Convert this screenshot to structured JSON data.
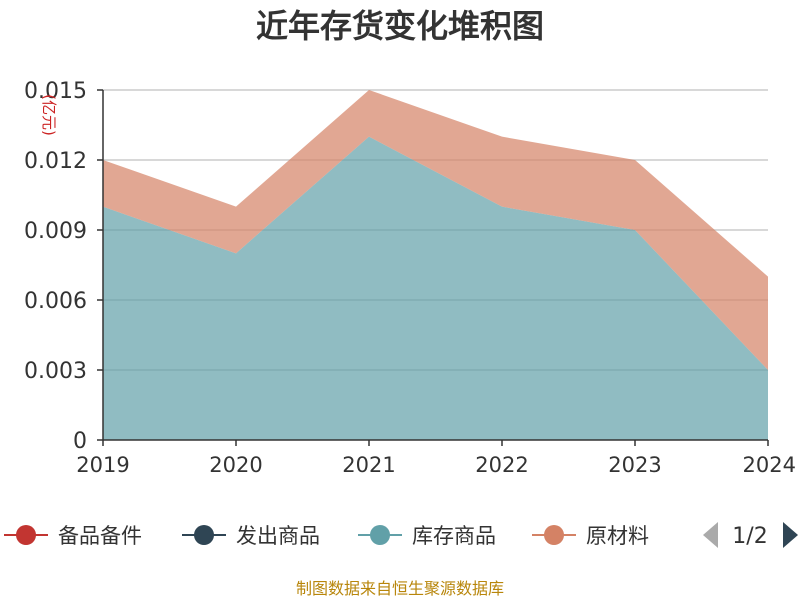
{
  "page": {
    "title": "近年存货变化堆积图",
    "footer": "制图数据来自恒生聚源数据库"
  },
  "legend": {
    "items": [
      {
        "label": "备品备件",
        "color": "#c23531"
      },
      {
        "label": "发出商品",
        "color": "#2f4554"
      },
      {
        "label": "库存商品",
        "color": "#61a0a8"
      },
      {
        "label": "原材料",
        "color": "#d48265"
      }
    ],
    "pager": "1/2"
  },
  "chart_data": {
    "type": "area",
    "stacked": true,
    "title": "近年存货变化堆积图",
    "ylabel": "(亿元)",
    "x": [
      "2019",
      "2020",
      "2021",
      "2022",
      "2023",
      "2024"
    ],
    "ylim": [
      0,
      0.015
    ],
    "yticks": [
      "0",
      "0.003",
      "0.006",
      "0.009",
      "0.012",
      "0.015"
    ],
    "series": [
      {
        "name": "库存商品",
        "color": "#61a0a8",
        "values": [
          0.01,
          0.008,
          0.013,
          0.01,
          0.009,
          0.003
        ]
      },
      {
        "name": "原材料",
        "color": "#d48265",
        "values": [
          0.002,
          0.002,
          0.002,
          0.003,
          0.003,
          0.004
        ]
      }
    ],
    "grid": true,
    "legend_position": "bottom"
  }
}
